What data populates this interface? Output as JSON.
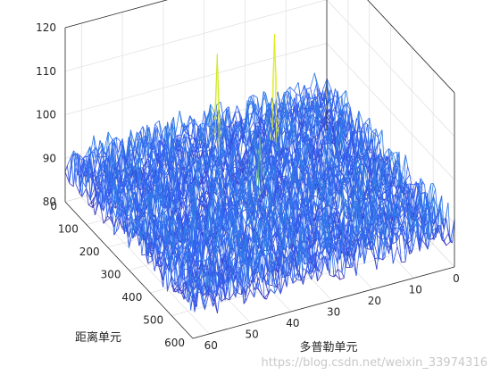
{
  "chart_data": {
    "type": "surface-mesh",
    "title": "",
    "xlabel": "多普勒单元",
    "ylabel": "距离单元",
    "zlabel": "",
    "xlim": [
      0,
      64
    ],
    "ylim": [
      0,
      600
    ],
    "zlim": [
      80,
      120
    ],
    "xticks": [
      0,
      10,
      20,
      30,
      40,
      50,
      60
    ],
    "yticks": [
      0,
      100,
      200,
      300,
      400,
      500,
      600
    ],
    "zticks": [
      80,
      90,
      100,
      110,
      120
    ],
    "grid": true,
    "colormap": "parula",
    "noise_floor": {
      "min": 84,
      "max": 94
    },
    "peaks": [
      {
        "doppler": 18,
        "range": 100,
        "level": 112
      },
      {
        "doppler": 32,
        "range": 100,
        "level": 111
      },
      {
        "doppler": 32,
        "range": 300,
        "level": 103
      }
    ],
    "colors": {
      "parula_low": "#3e26a8",
      "parula_mid": "#2ab6c5",
      "parula_high": "#f9fb0e"
    }
  },
  "watermark": "https://blog.csdn.net/weixin_33974316"
}
